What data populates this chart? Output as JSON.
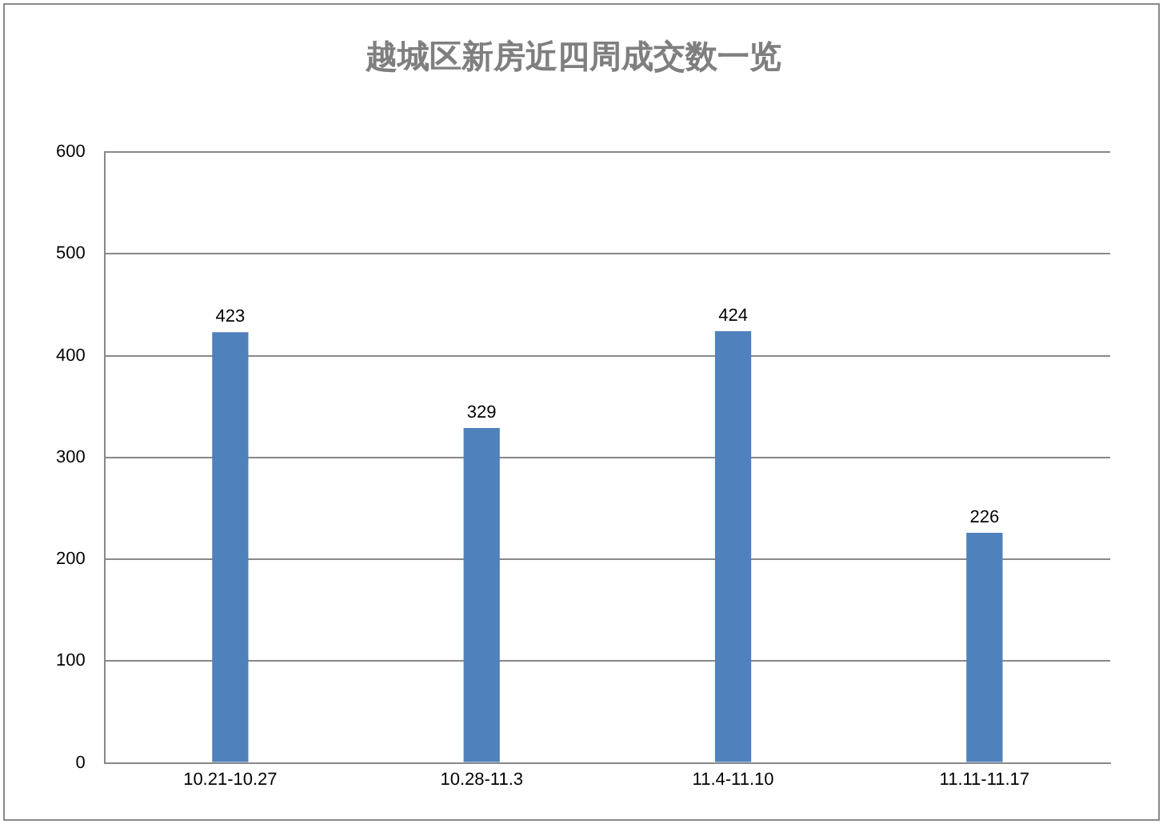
{
  "chart_data": {
    "type": "bar",
    "title": "越城区新房近四周成交数一览",
    "categories": [
      "10.21-10.27",
      "10.28-11.3",
      "11.4-11.10",
      "11.11-11.17"
    ],
    "values": [
      423,
      329,
      424,
      226
    ],
    "color": "#4f81bd",
    "ylim": [
      0,
      600
    ],
    "yticks": [
      0,
      100,
      200,
      300,
      400,
      500,
      600
    ],
    "grid": "y",
    "data_labels": true
  }
}
